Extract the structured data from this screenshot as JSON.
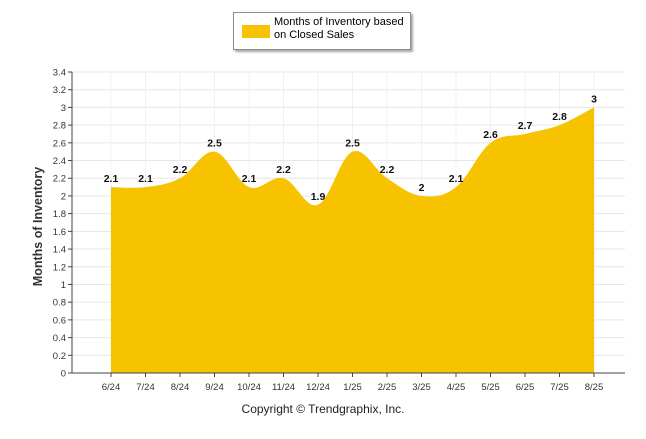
{
  "colors": {
    "area": "#F7C200",
    "grid": "#e6e6e6",
    "axis": "#444444"
  },
  "chart_data": {
    "type": "area",
    "categories": [
      "6/24",
      "7/24",
      "8/24",
      "9/24",
      "10/24",
      "11/24",
      "12/24",
      "1/25",
      "2/25",
      "3/25",
      "4/25",
      "5/25",
      "6/25",
      "7/25",
      "8/25"
    ],
    "series": [
      {
        "name": "Months of Inventory based on Closed Sales",
        "values": [
          2.1,
          2.1,
          2.2,
          2.5,
          2.1,
          2.2,
          1.9,
          2.5,
          2.2,
          2.0,
          2.1,
          2.6,
          2.7,
          2.8,
          3.0
        ],
        "labels": [
          "2.1",
          "2.1",
          "2.2",
          "2.5",
          "2.1",
          "2.2",
          "1.9",
          "2.5",
          "2.2",
          "2",
          "2.1",
          "2.6",
          "2.7",
          "2.8",
          "3"
        ]
      }
    ],
    "ylabel": "Months of Inventory",
    "ylim": [
      0,
      3.4
    ],
    "yticks": [
      "0",
      "0.2",
      "0.4",
      "0.6",
      "0.8",
      "1",
      "1.2",
      "1.4",
      "1.6",
      "1.8",
      "2",
      "2.2",
      "2.4",
      "2.6",
      "2.8",
      "3",
      "3.2",
      "3.4"
    ],
    "grid": true,
    "legend": "top-center"
  },
  "legend_label": "Months of Inventory based on Closed Sales",
  "footer": "Copyright © Trendgraphix, Inc."
}
